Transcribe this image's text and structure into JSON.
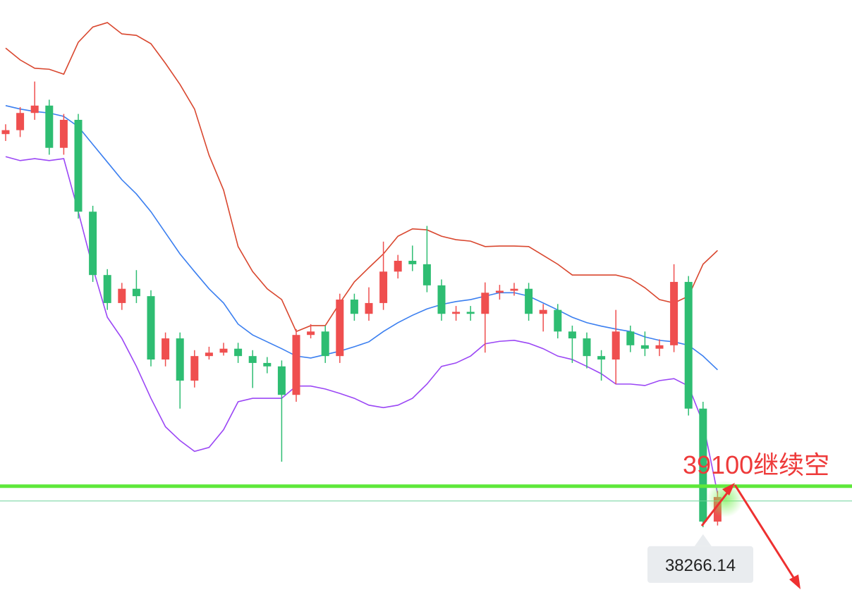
{
  "chart_data": {
    "type": "candlestick",
    "ylim": [
      36600,
      49000
    ],
    "up_color": "#ef4f4f",
    "down_color": "#2ebd72",
    "open": [
      46270,
      46350,
      46700,
      46850,
      45990,
      46560,
      44690,
      43400,
      42830,
      43120,
      42970,
      41680,
      42110,
      41250,
      41750,
      41820,
      41900,
      41750,
      41610,
      41540,
      40960,
      42180,
      42250,
      41750,
      42900,
      42610,
      42830,
      43470,
      43690,
      43620,
      43190,
      42610,
      42650,
      42610,
      43040,
      43080,
      43120,
      42610,
      42690,
      42250,
      42110,
      41750,
      41680,
      42250,
      41970,
      41900,
      41970,
      43260,
      40680,
      38380
    ],
    "high": [
      46470,
      46820,
      47340,
      46970,
      46680,
      46680,
      44810,
      43520,
      43240,
      43500,
      43090,
      42230,
      42230,
      41870,
      41940,
      42020,
      42020,
      41870,
      41730,
      41660,
      42300,
      42400,
      42370,
      43020,
      43020,
      43150,
      44080,
      43810,
      44000,
      44400,
      43310,
      42770,
      42770,
      43250,
      43200,
      43240,
      43240,
      42810,
      42810,
      42370,
      42230,
      41870,
      42690,
      42370,
      42250,
      42090,
      43620,
      43380,
      40820,
      39000
    ],
    "low": [
      46130,
      46210,
      46560,
      45850,
      45850,
      44550,
      43260,
      42690,
      42690,
      42830,
      41540,
      41540,
      40680,
      41110,
      41680,
      41760,
      41610,
      41100,
      41400,
      39600,
      40820,
      42110,
      41610,
      41610,
      42470,
      42470,
      42690,
      43330,
      43480,
      43050,
      42470,
      42470,
      42470,
      41820,
      42900,
      42980,
      42470,
      42250,
      42110,
      41610,
      41500,
      41250,
      41180,
      41830,
      41750,
      41750,
      41830,
      40540,
      38266.14,
      38300
    ],
    "close": [
      46350,
      46700,
      46850,
      45990,
      46560,
      44690,
      43400,
      42830,
      43120,
      42970,
      41680,
      42110,
      41250,
      41750,
      41820,
      41900,
      41750,
      41610,
      41540,
      40960,
      42180,
      42250,
      41750,
      42900,
      42610,
      42830,
      43470,
      43690,
      43620,
      43190,
      42610,
      42650,
      42610,
      43040,
      43080,
      43120,
      42610,
      42690,
      42250,
      42110,
      41750,
      41680,
      42250,
      41970,
      41900,
      41970,
      43260,
      40680,
      38380,
      38880
    ],
    "series": [
      {
        "color": "#d9472f",
        "values": [
          48020,
          47780,
          47610,
          47590,
          47490,
          48140,
          48450,
          48540,
          48310,
          48280,
          48110,
          47710,
          47280,
          46780,
          45840,
          45130,
          43980,
          43470,
          43120,
          42900,
          42250,
          42370,
          42370,
          42830,
          43260,
          43550,
          43830,
          44190,
          44340,
          44320,
          44190,
          44120,
          44090,
          43980,
          43990,
          43990,
          43980,
          43800,
          43620,
          43400,
          43400,
          43400,
          43400,
          43330,
          43140,
          42900,
          42830,
          42970,
          43620,
          43900
        ]
      },
      {
        "color": "#3b7ff0",
        "values": [
          46850,
          46780,
          46730,
          46700,
          46630,
          46420,
          46060,
          45700,
          45340,
          45050,
          44690,
          44260,
          43830,
          43470,
          43120,
          42830,
          42400,
          42180,
          42040,
          41900,
          41750,
          41710,
          41780,
          41850,
          41940,
          42040,
          42250,
          42430,
          42580,
          42710,
          42800,
          42860,
          42900,
          42970,
          43040,
          43040,
          42970,
          42830,
          42690,
          42540,
          42430,
          42360,
          42300,
          42250,
          42140,
          42070,
          42040,
          41970,
          41750,
          41470
        ]
      },
      {
        "color": "#9b47f5",
        "values": [
          45810,
          45730,
          45770,
          45730,
          45770,
          44690,
          43550,
          42540,
          42110,
          41540,
          40890,
          40310,
          40030,
          39810,
          39890,
          40250,
          40820,
          40890,
          40890,
          40890,
          41140,
          41140,
          41080,
          40990,
          40890,
          40750,
          40700,
          40750,
          40890,
          41180,
          41540,
          41610,
          41750,
          42000,
          42050,
          42070,
          42010,
          41900,
          41750,
          41680,
          41540,
          41390,
          41180,
          41180,
          41150,
          41250,
          41290,
          41140,
          40390,
          38950
        ]
      }
    ],
    "level": 39100,
    "level_color": "#5ee83a",
    "current_price": 38800,
    "annotation": "39100继续空"
  }
}
